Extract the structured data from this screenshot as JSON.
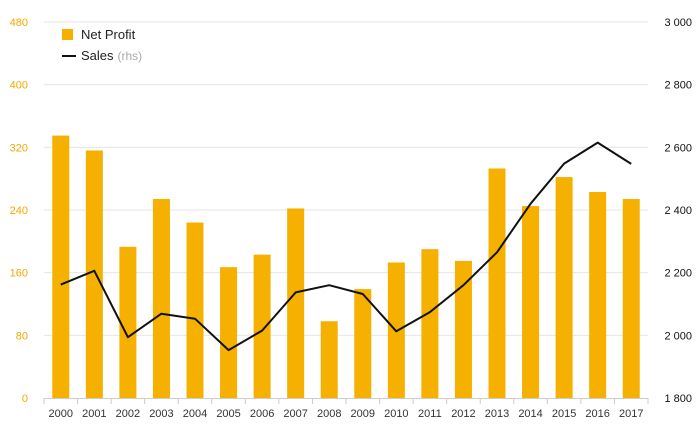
{
  "chart_data": {
    "type": "bar",
    "categories": [
      "2000",
      "2001",
      "2002",
      "2003",
      "2004",
      "2005",
      "2006",
      "2007",
      "2008",
      "2009",
      "2010",
      "2011",
      "2012",
      "2013",
      "2014",
      "2015",
      "2016",
      "2017"
    ],
    "series": [
      {
        "name": "Net Profit",
        "type": "bar",
        "axis": "left",
        "color": "#f5b000",
        "values": [
          335,
          316,
          193,
          254,
          224,
          167,
          183,
          242,
          98,
          139,
          173,
          190,
          175,
          293,
          245,
          282,
          263,
          254
        ]
      },
      {
        "name": "Sales",
        "legend_note": "(rhs)",
        "type": "line",
        "axis": "right",
        "color": "#111111",
        "values": [
          2162,
          2206,
          1994,
          2069,
          2053,
          1953,
          2015,
          2137,
          2160,
          2132,
          2013,
          2074,
          2160,
          2265,
          2420,
          2548,
          2615,
          2547
        ]
      }
    ],
    "left_axis": {
      "ticks": [
        "0",
        "80",
        "160",
        "240",
        "320",
        "400",
        "480"
      ],
      "ylim": [
        0,
        480
      ],
      "color": "#f5a800"
    },
    "right_axis": {
      "ticks": [
        "1 800",
        "2 000",
        "2 200",
        "2 400",
        "2 600",
        "2 800",
        "3 000"
      ],
      "ylim": [
        1800,
        3000
      ],
      "color": "#111111"
    },
    "grid": true,
    "legend_position": "top-left"
  }
}
